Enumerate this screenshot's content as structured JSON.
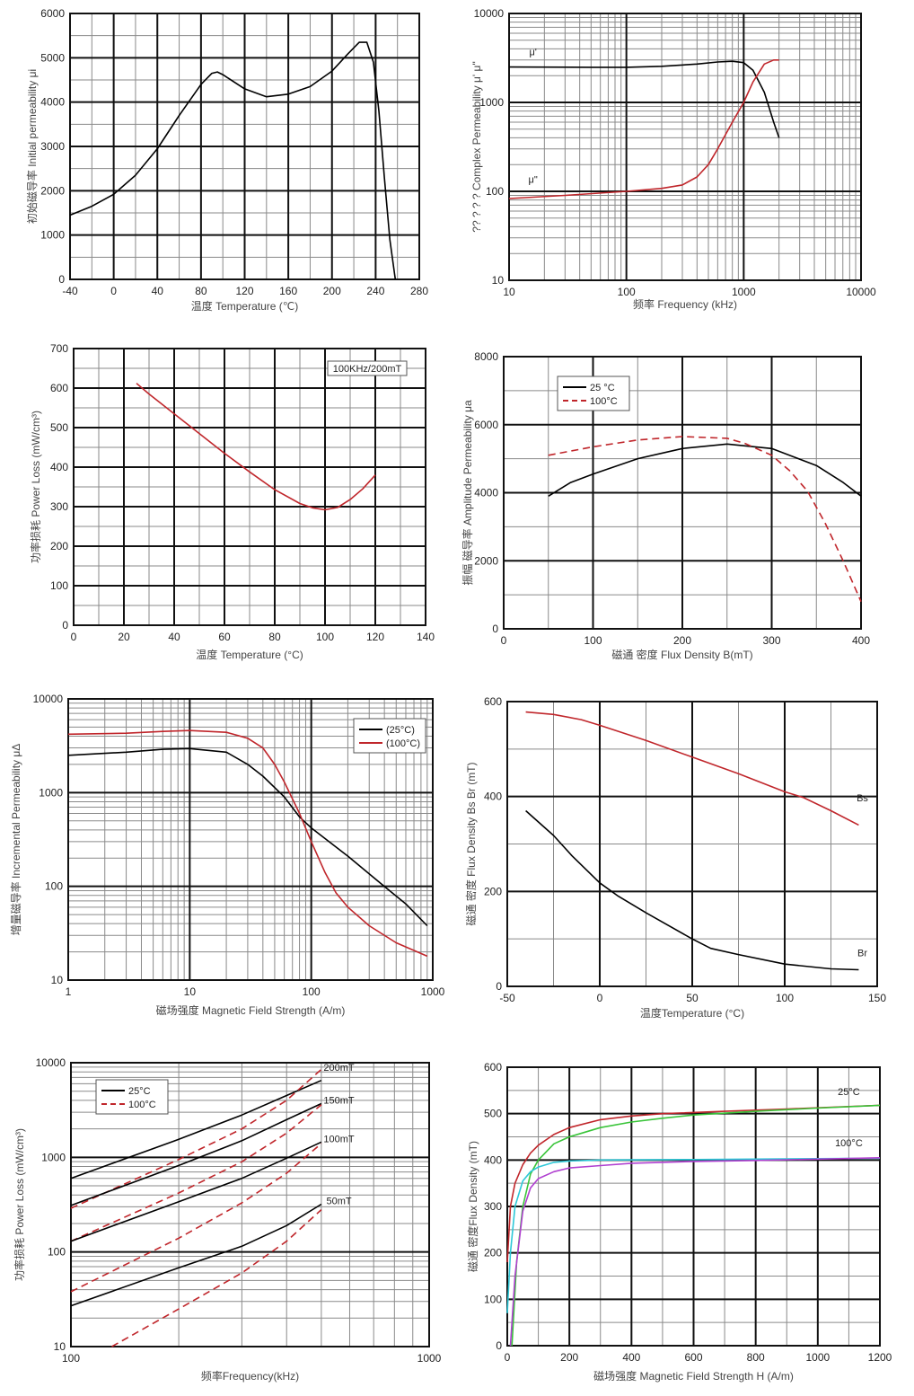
{
  "chart_data": [
    {
      "id": "c1",
      "type": "line",
      "title": "",
      "xlabel": "温度    Temperature (℃)",
      "ylabel": "初始磁导率 Initial permeability μi",
      "xscale": "linear",
      "yscale": "linear",
      "xlim": [
        -40,
        280
      ],
      "ylim": [
        0,
        6000
      ],
      "xticks": [
        -40,
        0,
        40,
        80,
        120,
        160,
        200,
        240,
        280
      ],
      "yticks": [
        0,
        1000,
        2000,
        3000,
        4000,
        5000,
        6000
      ],
      "grid": true,
      "series": [
        {
          "name": "μi",
          "color": "#000000",
          "dash": false,
          "x": [
            -40,
            -20,
            0,
            20,
            40,
            60,
            80,
            90,
            95,
            100,
            120,
            140,
            160,
            180,
            200,
            215,
            225,
            232,
            238,
            243,
            248,
            253,
            258
          ],
          "y": [
            1450,
            1650,
            1920,
            2350,
            2950,
            3700,
            4400,
            4650,
            4680,
            4620,
            4300,
            4120,
            4180,
            4350,
            4700,
            5100,
            5350,
            5350,
            4900,
            3800,
            2300,
            900,
            0
          ]
        }
      ]
    },
    {
      "id": "c2",
      "type": "line",
      "title": "",
      "xlabel": "频率   Frequency (kHz)",
      "ylabel": "?? ? ? ?    Complex Permeability μ' μ\"",
      "xscale": "log",
      "yscale": "log",
      "xlim": [
        10,
        10000
      ],
      "ylim": [
        10,
        10000
      ],
      "xticks": [
        10,
        100,
        1000,
        10000
      ],
      "yticks": [
        10,
        100,
        1000,
        10000
      ],
      "grid": true,
      "annotations": [
        "μ'",
        "μ\""
      ],
      "series": [
        {
          "name": "μ'",
          "color": "#000000",
          "dash": false,
          "x": [
            10,
            50,
            100,
            200,
            400,
            600,
            800,
            1000,
            1200,
            1500,
            1800,
            2000
          ],
          "y": [
            2500,
            2480,
            2480,
            2550,
            2700,
            2850,
            2900,
            2800,
            2300,
            1300,
            600,
            400
          ]
        },
        {
          "name": "μ\"",
          "color": "#c0262b",
          "dash": false,
          "x": [
            10,
            30,
            100,
            200,
            300,
            400,
            500,
            600,
            800,
            1000,
            1200,
            1500,
            1800,
            2000
          ],
          "y": [
            83,
            90,
            100,
            108,
            118,
            145,
            200,
            300,
            600,
            1000,
            1700,
            2700,
            3000,
            3000
          ]
        }
      ]
    },
    {
      "id": "c3",
      "type": "line",
      "title": "",
      "xlabel": "温度 Temperature (°C)",
      "ylabel": "功率损耗    Power Loss (mW/cm³)",
      "xscale": "linear",
      "yscale": "linear",
      "xlim": [
        0,
        140
      ],
      "ylim": [
        0,
        700
      ],
      "xticks": [
        0,
        20,
        40,
        60,
        80,
        100,
        120,
        140
      ],
      "yticks": [
        0,
        100,
        200,
        300,
        400,
        500,
        600,
        700
      ],
      "grid": true,
      "annotation_box": "100KHz/200mT",
      "series": [
        {
          "name": "Power Loss",
          "color": "#c0262b",
          "dash": false,
          "x": [
            25,
            30,
            40,
            50,
            60,
            70,
            80,
            90,
            95,
            100,
            105,
            110,
            115,
            120
          ],
          "y": [
            612,
            585,
            535,
            485,
            435,
            388,
            343,
            308,
            297,
            292,
            298,
            318,
            345,
            380
          ]
        }
      ]
    },
    {
      "id": "c4",
      "type": "line",
      "title": "",
      "xlabel": "磁通  密度 Flux Density B(mT)",
      "ylabel": "振幅  磁导率  Amplitude Permeability  μa",
      "xscale": "linear",
      "yscale": "linear",
      "xlim": [
        0,
        400
      ],
      "ylim": [
        0,
        8000
      ],
      "xticks": [
        0,
        100,
        200,
        300,
        400
      ],
      "yticks": [
        0,
        2000,
        4000,
        6000,
        8000
      ],
      "grid": true,
      "legend": {
        "placement": "top-left",
        "entries": [
          "25  °C",
          "100°C"
        ]
      },
      "series": [
        {
          "name": "25 °C",
          "color": "#000000",
          "dash": false,
          "x": [
            50,
            75,
            100,
            150,
            200,
            250,
            300,
            350,
            380,
            400
          ],
          "y": [
            3900,
            4300,
            4550,
            5000,
            5300,
            5430,
            5300,
            4800,
            4300,
            3900
          ]
        },
        {
          "name": "100°C",
          "color": "#c0262b",
          "dash": true,
          "x": [
            50,
            100,
            150,
            200,
            250,
            270,
            300,
            320,
            340,
            360,
            380,
            400
          ],
          "y": [
            5100,
            5350,
            5550,
            5650,
            5600,
            5450,
            5100,
            4650,
            4050,
            3100,
            2000,
            800
          ]
        }
      ]
    },
    {
      "id": "c5",
      "type": "line",
      "title": "",
      "xlabel": "磁场强度 Magnetic Field Strength (A/m)",
      "ylabel": "增量磁导率 Incremental Permeability μΔ",
      "xscale": "log",
      "yscale": "log",
      "xlim": [
        1,
        1000
      ],
      "ylim": [
        10,
        10000
      ],
      "xticks": [
        1,
        10,
        100,
        1000
      ],
      "yticks": [
        10,
        100,
        1000,
        10000
      ],
      "grid": true,
      "legend": {
        "placement": "top-right",
        "entries": [
          "(25°C)",
          "(100°C)"
        ]
      },
      "series": [
        {
          "name": "(25°C)",
          "color": "#000000",
          "dash": false,
          "x": [
            1,
            3,
            6,
            10,
            20,
            30,
            40,
            60,
            80,
            100,
            150,
            200,
            400,
            600,
            900
          ],
          "y": [
            2500,
            2700,
            2900,
            2950,
            2700,
            2000,
            1500,
            900,
            550,
            420,
            280,
            210,
            100,
            65,
            38
          ]
        },
        {
          "name": "(100°C)",
          "color": "#c0262b",
          "dash": false,
          "x": [
            1,
            3,
            6,
            10,
            20,
            30,
            40,
            50,
            60,
            80,
            100,
            130,
            160,
            200,
            300,
            500,
            900
          ],
          "y": [
            4200,
            4300,
            4500,
            4600,
            4400,
            3800,
            3000,
            2000,
            1300,
            600,
            300,
            140,
            85,
            60,
            38,
            25,
            18
          ]
        }
      ]
    },
    {
      "id": "c6",
      "type": "line",
      "title": "",
      "xlabel": "温度Temperature (°C)",
      "ylabel": "磁通  密度 Flux Density Bs Br  (mT)",
      "xscale": "linear",
      "yscale": "linear",
      "xlim": [
        -50,
        150
      ],
      "ylim": [
        0,
        600
      ],
      "xticks": [
        -50,
        0,
        50,
        100,
        150
      ],
      "yticks": [
        0,
        200,
        400,
        600
      ],
      "grid": true,
      "annotations": [
        "Bs",
        "Br"
      ],
      "series": [
        {
          "name": "Bs",
          "color": "#c0262b",
          "dash": false,
          "x": [
            -40,
            -25,
            -10,
            0,
            25,
            50,
            75,
            100,
            110,
            125,
            140
          ],
          "y": [
            578,
            573,
            562,
            550,
            518,
            483,
            448,
            410,
            398,
            370,
            340
          ]
        },
        {
          "name": "Br",
          "color": "#000000",
          "dash": false,
          "x": [
            -40,
            -25,
            -15,
            0,
            10,
            25,
            50,
            60,
            75,
            100,
            125,
            140
          ],
          "y": [
            370,
            318,
            275,
            218,
            190,
            155,
            100,
            80,
            67,
            47,
            37,
            35
          ]
        }
      ]
    },
    {
      "id": "c7",
      "type": "line",
      "title": "",
      "xlabel": "频率Frequency(kHz)",
      "ylabel": "功率损耗 Power Loss (mW/cm³)",
      "xscale": "log",
      "yscale": "log",
      "xlim": [
        100,
        1000
      ],
      "ylim": [
        10,
        10000
      ],
      "xticks": [
        100,
        1000
      ],
      "yticks": [
        10,
        100,
        1000,
        10000
      ],
      "grid": true,
      "legend": {
        "placement": "top-left",
        "entries": [
          "25°C",
          "100°C"
        ]
      },
      "annotations": [
        "200mT",
        "150mT",
        "100mT",
        "50mT"
      ],
      "series": [
        {
          "name": "200mT 25°C",
          "color": "#000000",
          "dash": false,
          "x": [
            100,
            200,
            300,
            400,
            500
          ],
          "y": [
            600,
            1550,
            2800,
            4500,
            6500
          ]
        },
        {
          "name": "200mT 100°C",
          "color": "#c0262b",
          "dash": true,
          "x": [
            100,
            200,
            300,
            400,
            500
          ],
          "y": [
            290,
            950,
            2000,
            4000,
            8500
          ]
        },
        {
          "name": "150mT 25°C",
          "color": "#000000",
          "dash": false,
          "x": [
            100,
            200,
            300,
            400,
            500
          ],
          "y": [
            310,
            820,
            1500,
            2500,
            3700
          ]
        },
        {
          "name": "150mT 100°C",
          "color": "#c0262b",
          "dash": true,
          "x": [
            100,
            200,
            300,
            400,
            500
          ],
          "y": [
            130,
            420,
            900,
            1800,
            3600
          ]
        },
        {
          "name": "100mT 25°C",
          "color": "#000000",
          "dash": false,
          "x": [
            100,
            200,
            300,
            400,
            500
          ],
          "y": [
            130,
            340,
            600,
            980,
            1450
          ]
        },
        {
          "name": "100mT 100°C",
          "color": "#c0262b",
          "dash": true,
          "x": [
            100,
            200,
            300,
            400,
            500
          ],
          "y": [
            38,
            140,
            330,
            680,
            1400
          ]
        },
        {
          "name": "50mT 25°C",
          "color": "#000000",
          "dash": false,
          "x": [
            100,
            200,
            300,
            400,
            500
          ],
          "y": [
            27,
            68,
            115,
            190,
            320
          ]
        },
        {
          "name": "50mT 100°C",
          "color": "#c0262b",
          "dash": true,
          "x": [
            130,
            200,
            300,
            400,
            500
          ],
          "y": [
            10,
            25,
            60,
            130,
            280
          ]
        }
      ]
    },
    {
      "id": "c8",
      "type": "line",
      "title": "",
      "xlabel": "磁场强度  Magnetic Field Strength H (A/m)",
      "ylabel": "磁通  密度Flux Density (mT)",
      "xscale": "linear",
      "yscale": "linear",
      "xlim": [
        0,
        1200
      ],
      "ylim": [
        0,
        600
      ],
      "xticks": [
        0,
        200,
        400,
        600,
        800,
        1000,
        1200
      ],
      "yticks": [
        0,
        100,
        200,
        300,
        400,
        500,
        600
      ],
      "grid": true,
      "annotations": [
        "25°C",
        "100°C"
      ],
      "series": [
        {
          "name": "25°C (upper)",
          "color": "#c0262b",
          "dash": false,
          "x": [
            0,
            10,
            25,
            50,
            75,
            100,
            150,
            200,
            300,
            400,
            500,
            700,
            900,
            1200
          ],
          "y": [
            180,
            300,
            350,
            390,
            415,
            432,
            455,
            470,
            487,
            495,
            500,
            505,
            510,
            518
          ]
        },
        {
          "name": "25°C (lower)",
          "color": "#39c439",
          "dash": false,
          "x": [
            15,
            30,
            50,
            75,
            100,
            150,
            200,
            300,
            400,
            500,
            600,
            800,
            1000,
            1200
          ],
          "y": [
            0,
            180,
            300,
            370,
            400,
            435,
            450,
            470,
            482,
            490,
            497,
            505,
            512,
            518
          ]
        },
        {
          "name": "100°C (upper)",
          "color": "#2ec8d8",
          "dash": false,
          "x": [
            0,
            10,
            25,
            50,
            75,
            100,
            150,
            200,
            300,
            600,
            1200
          ],
          "y": [
            70,
            200,
            300,
            355,
            375,
            385,
            395,
            398,
            400,
            401,
            404
          ]
        },
        {
          "name": "100°C (lower)",
          "color": "#b040d0",
          "dash": false,
          "x": [
            10,
            25,
            50,
            75,
            100,
            150,
            200,
            300,
            400,
            600,
            800,
            1200
          ],
          "y": [
            0,
            150,
            290,
            340,
            360,
            375,
            383,
            388,
            393,
            397,
            399,
            405
          ]
        }
      ]
    }
  ]
}
